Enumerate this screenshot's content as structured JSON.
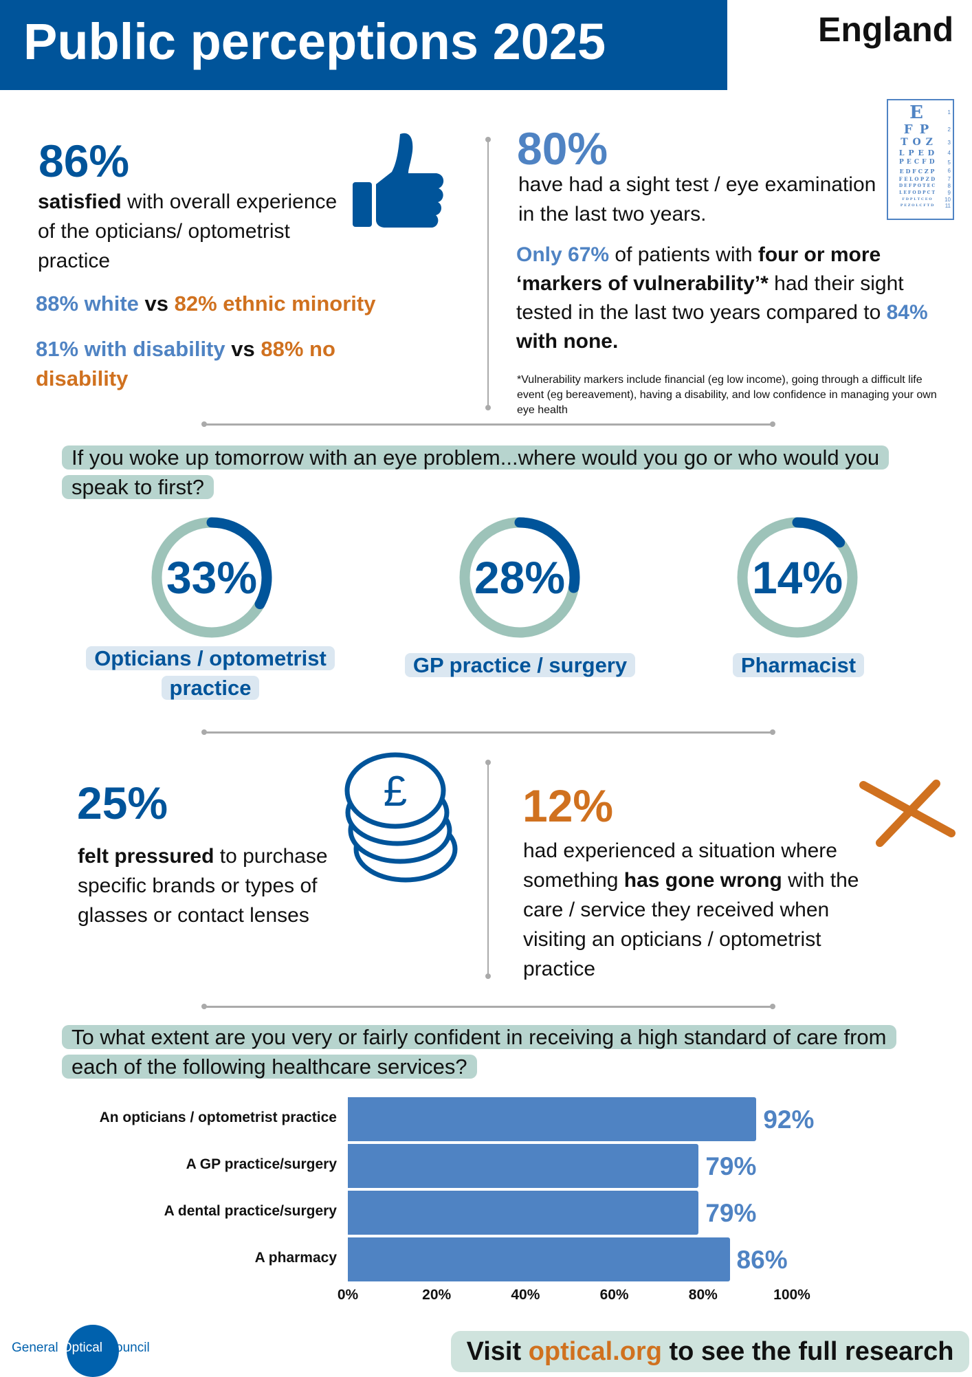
{
  "header": {
    "title": "Public perceptions 2025",
    "region": "England"
  },
  "satisfaction": {
    "stat": "86%",
    "bold": "satisfied",
    "text": " with overall experience of the opticians/ optometrist practice",
    "comparison1": {
      "a": "88% white",
      "vs": " vs ",
      "b": "82% ethnic minority"
    },
    "comparison2": {
      "a": "81% with disability",
      "vs": " vs ",
      "b": "88% no disability"
    }
  },
  "sight_test": {
    "stat": "80%",
    "text": "have had a sight test / eye examination in the last two years.",
    "p1": "Only 67%",
    "p2": " of patients with ",
    "p3": "four or more ‘markers of vulnerability’*",
    "p4": " had their sight tested in the last two years compared to ",
    "p5": "84%",
    "p6": " with none.",
    "footnote": "*Vulnerability markers include financial (eg low income), going through a difficult life event (eg bereavement), having a disability, and low confidence in managing your own eye health"
  },
  "eye_chart": {
    "rows": [
      "E",
      "F P",
      "T O Z",
      "L P E D",
      "P E C F D",
      "E D F C Z P",
      "F E L O P Z D",
      "D E F P O T E C",
      "L E F O D P C T",
      "F D P L T C E O",
      "P E Z O L C F T D"
    ],
    "numbers": [
      "1",
      "2",
      "3",
      "4",
      "5",
      "6",
      "7",
      "8",
      "9",
      "10",
      "11"
    ]
  },
  "first_contact": {
    "question": "If you woke up tomorrow with an eye problem...where would you go or who would you speak to first?",
    "items": [
      {
        "label": "Opticians / optometrist practice",
        "value": "33%",
        "fraction": 0.33
      },
      {
        "label": "GP practice / surgery",
        "value": "28%",
        "fraction": 0.28
      },
      {
        "label": "Pharmacist",
        "value": "14%",
        "fraction": 0.14
      }
    ]
  },
  "pressure": {
    "stat": "25%",
    "bold": "felt pressured",
    "text": " to purchase specific brands or types of glasses or contact lenses"
  },
  "gone_wrong": {
    "stat": "12%",
    "t1": "had experienced a situation where something ",
    "bold": "has gone wrong",
    "t2": " with the care / service they received when visiting an opticians / optometrist practice"
  },
  "chart_data": {
    "type": "bar",
    "orientation": "horizontal",
    "title": "To what extent are you very or fairly confident in receiving a high standard of care from each of the following healthcare services?",
    "categories": [
      "An opticians / optometrist practice",
      "A GP practice/surgery",
      "A dental practice/surgery",
      "A pharmacy"
    ],
    "values": [
      92,
      79,
      79,
      86
    ],
    "value_labels": [
      "92%",
      "79%",
      "79%",
      "86%"
    ],
    "xlim": [
      0,
      100
    ],
    "ticks": [
      "0%",
      "20%",
      "40%",
      "60%",
      "80%",
      "100%"
    ],
    "grid": false,
    "color": "#4f83c3"
  },
  "footer": {
    "logo": [
      "General",
      "Optical",
      "Council"
    ],
    "visit": "Visit ",
    "link": "optical.org",
    "rest": " to see the full research"
  },
  "colors": {
    "dark_blue": "#00549a",
    "light_blue": "#4f83c3",
    "orange": "#d0711f",
    "teal": "#b7d4ce"
  }
}
